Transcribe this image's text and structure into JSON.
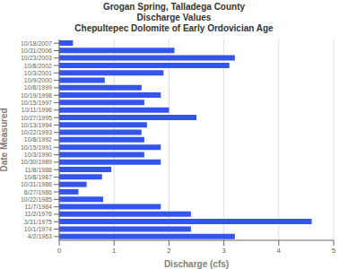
{
  "chart_data": {
    "type": "bar",
    "orientation": "horizontal",
    "title": "Grogan Spring, Talladega County\nDischarge Values\nChepultepec Dolomite of Early Ordovician Age",
    "xlabel": "Discharge (cfs)",
    "ylabel": "Date Measured",
    "color": "#3355ee",
    "xlim": [
      0,
      5
    ],
    "xticks": [
      0,
      1,
      2,
      3,
      4,
      5
    ],
    "grid": true,
    "categories": [
      "10/18/2007",
      "10/31/2006",
      "10/23/2003",
      "10/8/2002",
      "10/3/2001",
      "10/9/2000",
      "10/8/1999",
      "10/19/1998",
      "10/15/1997",
      "10/11/1996",
      "10/27/1995",
      "10/13/1994",
      "10/22/1993",
      "10/8/1992",
      "10/15/1991",
      "10/3/1990",
      "10/30/1989",
      "11/8/1988",
      "10/8/1987",
      "10/31/1986",
      "8/27/1986",
      "10/22/1985",
      "11/7/1984",
      "11/2/1976",
      "3/31/1975",
      "10/1/1974",
      "4/2/1963"
    ],
    "values": [
      0.25,
      2.1,
      3.2,
      3.1,
      1.9,
      0.83,
      1.5,
      1.85,
      1.55,
      2.0,
      2.5,
      1.6,
      1.5,
      1.55,
      1.85,
      1.55,
      1.85,
      0.95,
      0.78,
      0.5,
      0.35,
      0.8,
      1.85,
      2.4,
      4.6,
      2.4,
      3.2
    ]
  }
}
